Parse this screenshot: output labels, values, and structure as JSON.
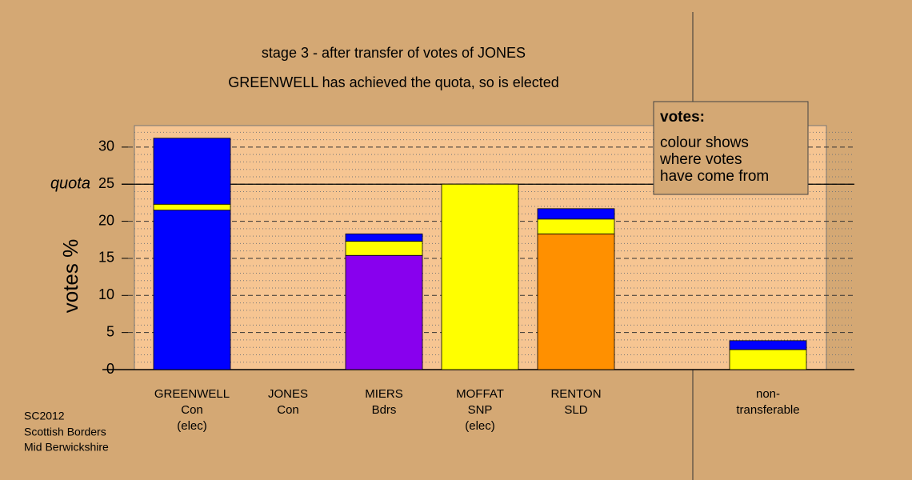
{
  "chart_data": {
    "type": "stacked-bar",
    "title": "stage 3 - after transfer of votes of JONES",
    "subtitle": "GREENWELL has achieved the quota, so is elected",
    "ylabel": "votes %",
    "categories": [
      [
        "GREENWELL",
        "Con",
        "(elec)"
      ],
      [
        "JONES",
        "Con"
      ],
      [
        "MIERS",
        "Bdrs"
      ],
      [
        "MOFFAT",
        "SNP",
        "(elec)"
      ],
      [
        "RENTON",
        "SLD"
      ],
      [
        "non-",
        "transferable"
      ]
    ],
    "series": [
      {
        "colors": [
          "#0000ff",
          null,
          "#8800ee",
          "#ffff00",
          "#ff9000",
          null
        ],
        "values": [
          21.5,
          0,
          15.4,
          25,
          18.3,
          0
        ]
      },
      {
        "color": "#ffff00",
        "values": [
          0.8,
          0,
          1.9,
          0,
          2.0,
          2.7
        ]
      },
      {
        "color": "#0000ff",
        "values": [
          8.9,
          0,
          1.0,
          0,
          1.4,
          1.2
        ]
      }
    ],
    "ylim": [
      0,
      32.9
    ],
    "yticks": [
      0,
      5,
      10,
      15,
      20,
      25,
      30
    ],
    "grid": true,
    "minor_grid_step": 1,
    "quota": 25,
    "quota_label": "quota",
    "legend": {
      "title": "votes:",
      "lines": [
        "colour shows",
        "where votes",
        "have come from"
      ],
      "position": "upper right"
    }
  },
  "footer": [
    "SC2012",
    "Scottish Borders",
    "Mid Berwickshire"
  ]
}
